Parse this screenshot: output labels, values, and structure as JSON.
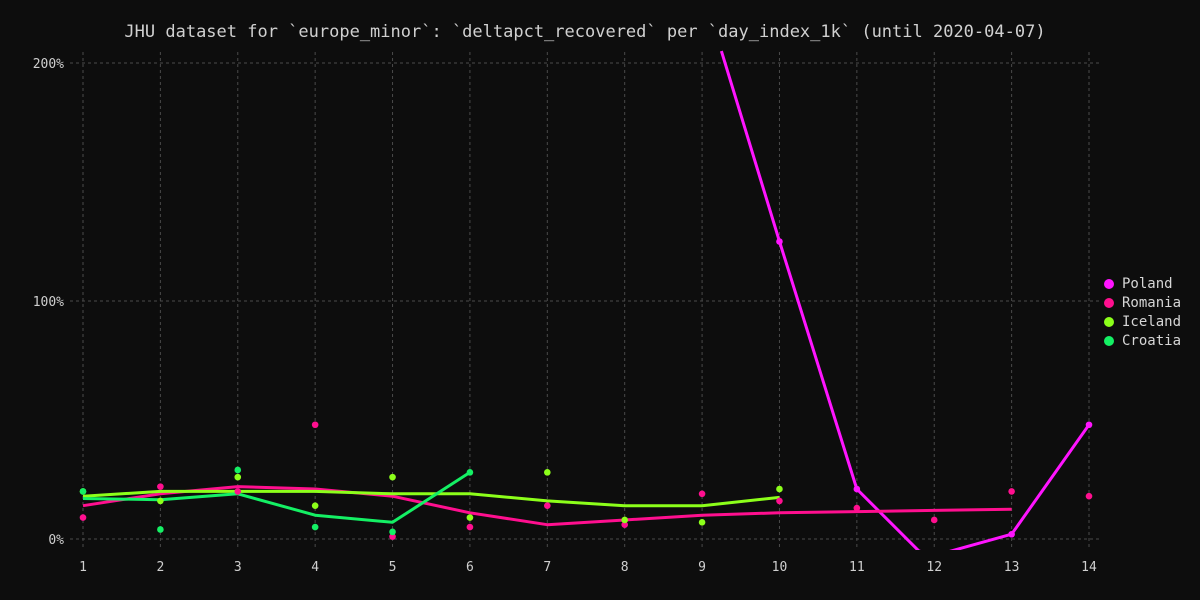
{
  "chart_data": {
    "type": "line",
    "title": "JHU dataset for `europe_minor`: `deltapct_recovered` per `day_index_1k` (until 2020-04-07)",
    "xlabel": "",
    "ylabel": "",
    "x": [
      1,
      2,
      3,
      4,
      5,
      6,
      7,
      8,
      9,
      10,
      11,
      12,
      13,
      14
    ],
    "xticks": [
      1,
      2,
      3,
      4,
      5,
      6,
      7,
      8,
      9,
      10,
      11,
      12,
      13,
      14
    ],
    "yticks": [
      0,
      100,
      200
    ],
    "ytick_labels": [
      "0%",
      "100%",
      "200%"
    ],
    "xlim": [
      0.8,
      14.2
    ],
    "ylim": [
      -5,
      205
    ],
    "grid": true,
    "legend_position": "right",
    "series": [
      {
        "name": "Poland",
        "color": "#ff14ff",
        "points": [
          [
            9,
            205
          ],
          [
            10,
            125
          ],
          [
            11,
            21
          ],
          [
            12,
            -7
          ],
          [
            13,
            2
          ],
          [
            14,
            48
          ]
        ],
        "trend": [
          [
            9.25,
            205
          ],
          [
            10,
            125
          ],
          [
            11,
            21
          ],
          [
            11.8,
            -5
          ],
          [
            12,
            -7
          ],
          [
            13,
            2
          ],
          [
            14,
            48
          ]
        ]
      },
      {
        "name": "Romania",
        "color": "#ff0f8f",
        "points": [
          [
            1,
            9
          ],
          [
            2,
            22
          ],
          [
            3,
            20
          ],
          [
            4,
            48
          ],
          [
            5,
            1
          ],
          [
            6,
            5
          ],
          [
            7,
            14
          ],
          [
            8,
            6
          ],
          [
            9,
            19
          ],
          [
            10,
            16
          ],
          [
            11,
            13
          ],
          [
            12,
            8
          ],
          [
            13,
            20
          ],
          [
            14,
            18
          ]
        ],
        "trend": [
          [
            1,
            14
          ],
          [
            2,
            19
          ],
          [
            3,
            22
          ],
          [
            4,
            21
          ],
          [
            5,
            18
          ],
          [
            6,
            11
          ],
          [
            7,
            6
          ],
          [
            8,
            8
          ],
          [
            9,
            10
          ],
          [
            10,
            11
          ],
          [
            11,
            11.5
          ],
          [
            12,
            12
          ],
          [
            13,
            12.5
          ]
        ]
      },
      {
        "name": "Iceland",
        "color": "#8cff1a",
        "points": [
          [
            1,
            20
          ],
          [
            2,
            16
          ],
          [
            3,
            26
          ],
          [
            4,
            14
          ],
          [
            5,
            26
          ],
          [
            6,
            9
          ],
          [
            7,
            28
          ],
          [
            8,
            8
          ],
          [
            9,
            7
          ],
          [
            10,
            21
          ]
        ],
        "trend": [
          [
            1,
            18
          ],
          [
            2,
            20
          ],
          [
            3,
            20
          ],
          [
            4,
            20
          ],
          [
            5,
            19
          ],
          [
            6,
            19
          ],
          [
            7,
            16
          ],
          [
            8,
            14
          ],
          [
            9,
            14
          ],
          [
            10,
            17.5
          ]
        ]
      },
      {
        "name": "Croatia",
        "color": "#14f064",
        "points": [
          [
            1,
            20
          ],
          [
            2,
            4
          ],
          [
            3,
            29
          ],
          [
            4,
            5
          ],
          [
            5,
            3
          ],
          [
            6,
            28
          ]
        ],
        "trend": [
          [
            1,
            17
          ],
          [
            2,
            16.5
          ],
          [
            3,
            19
          ],
          [
            4,
            10
          ],
          [
            5,
            7
          ],
          [
            6,
            28
          ]
        ]
      }
    ]
  }
}
